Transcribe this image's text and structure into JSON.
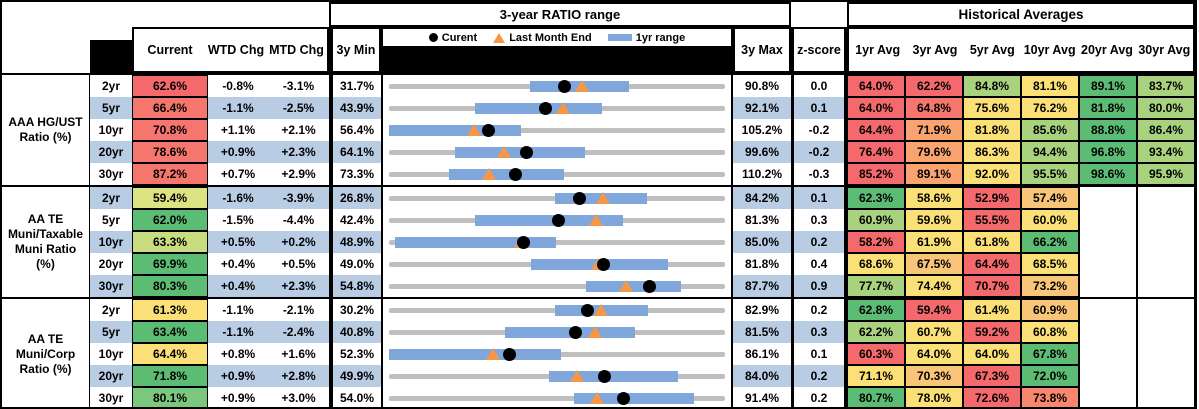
{
  "chart_data": {
    "type": "table",
    "range_title": "3-year RATIO range",
    "hist_title": "Historical Averages",
    "columns": {
      "current": "Current",
      "wtd": "WTD Chg",
      "mtd": "MTD Chg",
      "y3min": "3y Min",
      "y3max": "3y Max",
      "zscore": "z-score"
    },
    "hist_columns": [
      "1yr Avg",
      "3yr Avg",
      "5yr Avg",
      "10yr Avg",
      "20yr Avg",
      "30yr Avg"
    ],
    "legend": {
      "current": "Curent",
      "last_month": "Last Month End",
      "range": "1yr range"
    },
    "range_axis_note": "each row's dot-plot spans its own 3y Min to 3y Max; dot = current, triangle = last month end, blue bar = 1yr range",
    "groups": [
      {
        "label": "AAA HG/UST\nRatio (%)",
        "rows": [
          {
            "tenor": "2yr",
            "current": "62.6%",
            "cc": "red",
            "wtd": "-0.8%",
            "mtd": "-3.1%",
            "min": "31.7%",
            "max": "90.8%",
            "z": "0.0",
            "plot": {
              "lo": 31.7,
              "hi": 90.8,
              "cur": 62.6,
              "lme": 65.7,
              "r1": [
                56.5,
                74.0
              ]
            },
            "hist": [
              [
                "64.0%",
                "red"
              ],
              [
                "62.2%",
                "red"
              ],
              [
                "84.8%",
                "ltgreen"
              ],
              [
                "81.1%",
                "yellow"
              ],
              [
                "89.1%",
                "green"
              ],
              [
                "83.7%",
                "ltgreen"
              ]
            ]
          },
          {
            "tenor": "5yr",
            "current": "66.4%",
            "cc": "salmon",
            "wtd": "-1.1%",
            "mtd": "-2.5%",
            "min": "43.9%",
            "max": "92.1%",
            "z": "0.1",
            "plot": {
              "lo": 43.9,
              "hi": 92.1,
              "cur": 66.4,
              "lme": 68.9,
              "r1": [
                56.2,
                74.4
              ]
            },
            "hist": [
              [
                "64.0%",
                "red"
              ],
              [
                "64.8%",
                "salmon"
              ],
              [
                "75.6%",
                "yellow"
              ],
              [
                "76.2%",
                "yellow"
              ],
              [
                "81.8%",
                "green"
              ],
              [
                "80.0%",
                "ltgreen"
              ]
            ]
          },
          {
            "tenor": "10yr",
            "current": "70.8%",
            "cc": "salmon",
            "wtd": "+1.1%",
            "mtd": "+2.1%",
            "min": "56.4%",
            "max": "105.2%",
            "z": "-0.2",
            "plot": {
              "lo": 56.4,
              "hi": 105.2,
              "cur": 70.8,
              "lme": 68.7,
              "r1": [
                56.4,
                75.5
              ]
            },
            "hist": [
              [
                "64.4%",
                "red"
              ],
              [
                "71.9%",
                "orange"
              ],
              [
                "81.8%",
                "yellow"
              ],
              [
                "85.6%",
                "ltgreen"
              ],
              [
                "88.8%",
                "green"
              ],
              [
                "86.4%",
                "ltgreen"
              ]
            ]
          },
          {
            "tenor": "20yr",
            "current": "78.6%",
            "cc": "salmon",
            "wtd": "+0.9%",
            "mtd": "+2.3%",
            "min": "64.1%",
            "max": "99.6%",
            "z": "-0.2",
            "plot": {
              "lo": 64.1,
              "hi": 99.6,
              "cur": 78.6,
              "lme": 76.3,
              "r1": [
                71.1,
                84.8
              ]
            },
            "hist": [
              [
                "76.4%",
                "red"
              ],
              [
                "79.6%",
                "orange"
              ],
              [
                "86.3%",
                "yellow"
              ],
              [
                "94.4%",
                "ltgreen"
              ],
              [
                "96.8%",
                "green"
              ],
              [
                "93.4%",
                "ltgreen"
              ]
            ]
          },
          {
            "tenor": "30yr",
            "current": "87.2%",
            "cc": "salmon",
            "wtd": "+0.7%",
            "mtd": "+2.9%",
            "min": "73.3%",
            "max": "110.2%",
            "z": "-0.3",
            "plot": {
              "lo": 73.3,
              "hi": 110.2,
              "cur": 87.2,
              "lme": 84.3,
              "r1": [
                79.9,
                92.5
              ]
            },
            "hist": [
              [
                "85.2%",
                "red"
              ],
              [
                "89.1%",
                "orange"
              ],
              [
                "92.0%",
                "yellow"
              ],
              [
                "95.5%",
                "ltgreen"
              ],
              [
                "98.6%",
                "green"
              ],
              [
                "95.9%",
                "ltgreen"
              ]
            ]
          }
        ]
      },
      {
        "label": "AA TE\nMuni/Taxable\nMuni Ratio\n(%)",
        "rows": [
          {
            "tenor": "2yr",
            "current": "59.4%",
            "cc": "yellowgreen",
            "wtd": "-1.6%",
            "mtd": "-3.9%",
            "min": "26.8%",
            "max": "84.2%",
            "z": "0.1",
            "plot": {
              "lo": 26.8,
              "hi": 84.2,
              "cur": 59.4,
              "lme": 63.3,
              "r1": [
                55.2,
                70.9
              ]
            },
            "hist": [
              [
                "62.3%",
                "green"
              ],
              [
                "58.6%",
                "yellow"
              ],
              [
                "52.9%",
                "red"
              ],
              [
                "57.4%",
                "peach"
              ],
              null,
              null
            ]
          },
          {
            "tenor": "5yr",
            "current": "62.0%",
            "cc": "green",
            "wtd": "-1.5%",
            "mtd": "-4.4%",
            "min": "42.4%",
            "max": "81.3%",
            "z": "0.3",
            "plot": {
              "lo": 42.4,
              "hi": 81.3,
              "cur": 62.0,
              "lme": 66.4,
              "r1": [
                52.4,
                69.5
              ]
            },
            "hist": [
              [
                "60.9%",
                "ltgreen"
              ],
              [
                "59.6%",
                "yellow"
              ],
              [
                "55.5%",
                "red"
              ],
              [
                "60.0%",
                "yellow"
              ],
              null,
              null
            ]
          },
          {
            "tenor": "10yr",
            "current": "63.3%",
            "cc": "lime",
            "wtd": "+0.5%",
            "mtd": "+0.2%",
            "min": "48.9%",
            "max": "85.0%",
            "z": "0.2",
            "plot": {
              "lo": 48.9,
              "hi": 85.0,
              "cur": 63.3,
              "lme": 63.1,
              "r1": [
                49.5,
                66.8
              ]
            },
            "hist": [
              [
                "58.2%",
                "red"
              ],
              [
                "61.9%",
                "yellow"
              ],
              [
                "61.8%",
                "yellow"
              ],
              [
                "66.2%",
                "green"
              ],
              null,
              null
            ]
          },
          {
            "tenor": "20yr",
            "current": "69.9%",
            "cc": "green",
            "wtd": "+0.4%",
            "mtd": "+0.5%",
            "min": "49.0%",
            "max": "81.8%",
            "z": "0.4",
            "plot": {
              "lo": 49.0,
              "hi": 81.8,
              "cur": 69.9,
              "lme": 69.4,
              "r1": [
                62.9,
                76.2
              ]
            },
            "hist": [
              [
                "68.6%",
                "yellow"
              ],
              [
                "67.5%",
                "peach"
              ],
              [
                "64.4%",
                "red"
              ],
              [
                "68.5%",
                "yellow"
              ],
              null,
              null
            ]
          },
          {
            "tenor": "30yr",
            "current": "80.3%",
            "cc": "green",
            "wtd": "+0.4%",
            "mtd": "+2.3%",
            "min": "54.8%",
            "max": "87.7%",
            "z": "0.9",
            "plot": {
              "lo": 54.8,
              "hi": 87.7,
              "cur": 80.3,
              "lme": 78.0,
              "r1": [
                74.1,
                83.4
              ]
            },
            "hist": [
              [
                "77.7%",
                "ltgreen"
              ],
              [
                "74.4%",
                "yellow"
              ],
              [
                "70.7%",
                "red"
              ],
              [
                "73.2%",
                "peach"
              ],
              null,
              null
            ]
          }
        ]
      },
      {
        "label": "AA TE\nMuni/Corp\nRatio (%)",
        "rows": [
          {
            "tenor": "2yr",
            "current": "61.3%",
            "cc": "yellow",
            "wtd": "-1.1%",
            "mtd": "-2.1%",
            "min": "30.2%",
            "max": "82.9%",
            "z": "0.2",
            "plot": {
              "lo": 30.2,
              "hi": 82.9,
              "cur": 61.3,
              "lme": 63.4,
              "r1": [
                56.3,
                70.8
              ]
            },
            "hist": [
              [
                "62.8%",
                "green"
              ],
              [
                "59.4%",
                "red"
              ],
              [
                "61.4%",
                "yellow"
              ],
              [
                "60.9%",
                "peach"
              ],
              null,
              null
            ]
          },
          {
            "tenor": "5yr",
            "current": "63.4%",
            "cc": "green",
            "wtd": "-1.1%",
            "mtd": "-2.4%",
            "min": "40.8%",
            "max": "81.5%",
            "z": "0.3",
            "plot": {
              "lo": 40.8,
              "hi": 81.5,
              "cur": 63.4,
              "lme": 65.8,
              "r1": [
                54.8,
                70.6
              ]
            },
            "hist": [
              [
                "62.2%",
                "ltgreen"
              ],
              [
                "60.7%",
                "yellow"
              ],
              [
                "59.2%",
                "red"
              ],
              [
                "60.8%",
                "yellow"
              ],
              null,
              null
            ]
          },
          {
            "tenor": "10yr",
            "current": "64.4%",
            "cc": "yellow",
            "wtd": "+0.8%",
            "mtd": "+1.6%",
            "min": "52.3%",
            "max": "86.1%",
            "z": "0.1",
            "plot": {
              "lo": 52.3,
              "hi": 86.1,
              "cur": 64.4,
              "lme": 62.8,
              "r1": [
                52.3,
                69.6
              ]
            },
            "hist": [
              [
                "60.3%",
                "red"
              ],
              [
                "64.0%",
                "yellow"
              ],
              [
                "64.0%",
                "yellow"
              ],
              [
                "67.8%",
                "green"
              ],
              null,
              null
            ]
          },
          {
            "tenor": "20yr",
            "current": "71.8%",
            "cc": "green",
            "wtd": "+0.9%",
            "mtd": "+2.8%",
            "min": "49.9%",
            "max": "84.0%",
            "z": "0.2",
            "plot": {
              "lo": 49.9,
              "hi": 84.0,
              "cur": 71.8,
              "lme": 69.0,
              "r1": [
                66.1,
                79.2
              ]
            },
            "hist": [
              [
                "71.1%",
                "yellow"
              ],
              [
                "70.3%",
                "peach"
              ],
              [
                "67.3%",
                "red"
              ],
              [
                "72.0%",
                "green"
              ],
              null,
              null
            ]
          },
          {
            "tenor": "30yr",
            "current": "80.1%",
            "cc": "midgreen",
            "wtd": "+0.9%",
            "mtd": "+3.0%",
            "min": "54.0%",
            "max": "91.4%",
            "z": "0.2",
            "plot": {
              "lo": 54.0,
              "hi": 91.4,
              "cur": 80.1,
              "lme": 77.1,
              "r1": [
                74.6,
                88.0
              ]
            },
            "hist": [
              [
                "80.7%",
                "green"
              ],
              [
                "78.0%",
                "yellow"
              ],
              [
                "72.6%",
                "red"
              ],
              [
                "73.8%",
                "coral"
              ],
              null,
              null
            ]
          }
        ]
      }
    ]
  },
  "colors": {
    "red": "#F4696C",
    "salmon": "#F4766D",
    "orange": "#F9A36F",
    "peach": "#F9C578",
    "coral": "#F9876F",
    "yellow": "#FBE077",
    "yellowgreen": "#DCE383",
    "lime": "#C9DD80",
    "ltgreen": "#A8D27E",
    "midgreen": "#7CC77E",
    "green": "#5DBC74",
    "band": "#B8CCE4",
    "range_bar": "#7FA7DB",
    "track": "#BFBFBF",
    "triangle": "#F79646",
    "dot": "#000000"
  }
}
